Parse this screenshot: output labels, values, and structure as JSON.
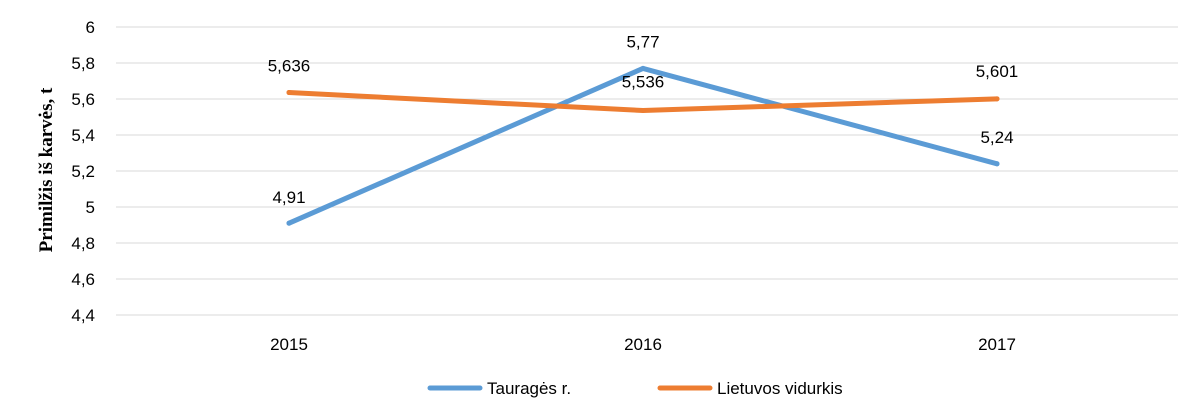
{
  "chart_data": {
    "type": "line",
    "categories": [
      "2015",
      "2016",
      "2017"
    ],
    "series": [
      {
        "name": "Tauragės r.",
        "values": [
          4.91,
          5.77,
          5.24
        ],
        "labels": [
          "4,91",
          "5,77",
          "5,24"
        ],
        "color": "#5b9bd5"
      },
      {
        "name": "Lietuvos vidurkis",
        "values": [
          5.636,
          5.536,
          5.601
        ],
        "labels": [
          "5,636",
          "5,536",
          "5,601"
        ],
        "color": "#ed7d31"
      }
    ],
    "ylabel": "Primilžis iš karvės, t",
    "ylim": [
      4.4,
      6
    ],
    "yticks": [
      "4,4",
      "4,6",
      "4,8",
      "5",
      "5,2",
      "5,4",
      "5,6",
      "5,8",
      "6"
    ],
    "grid": true,
    "legend": "bottom"
  }
}
